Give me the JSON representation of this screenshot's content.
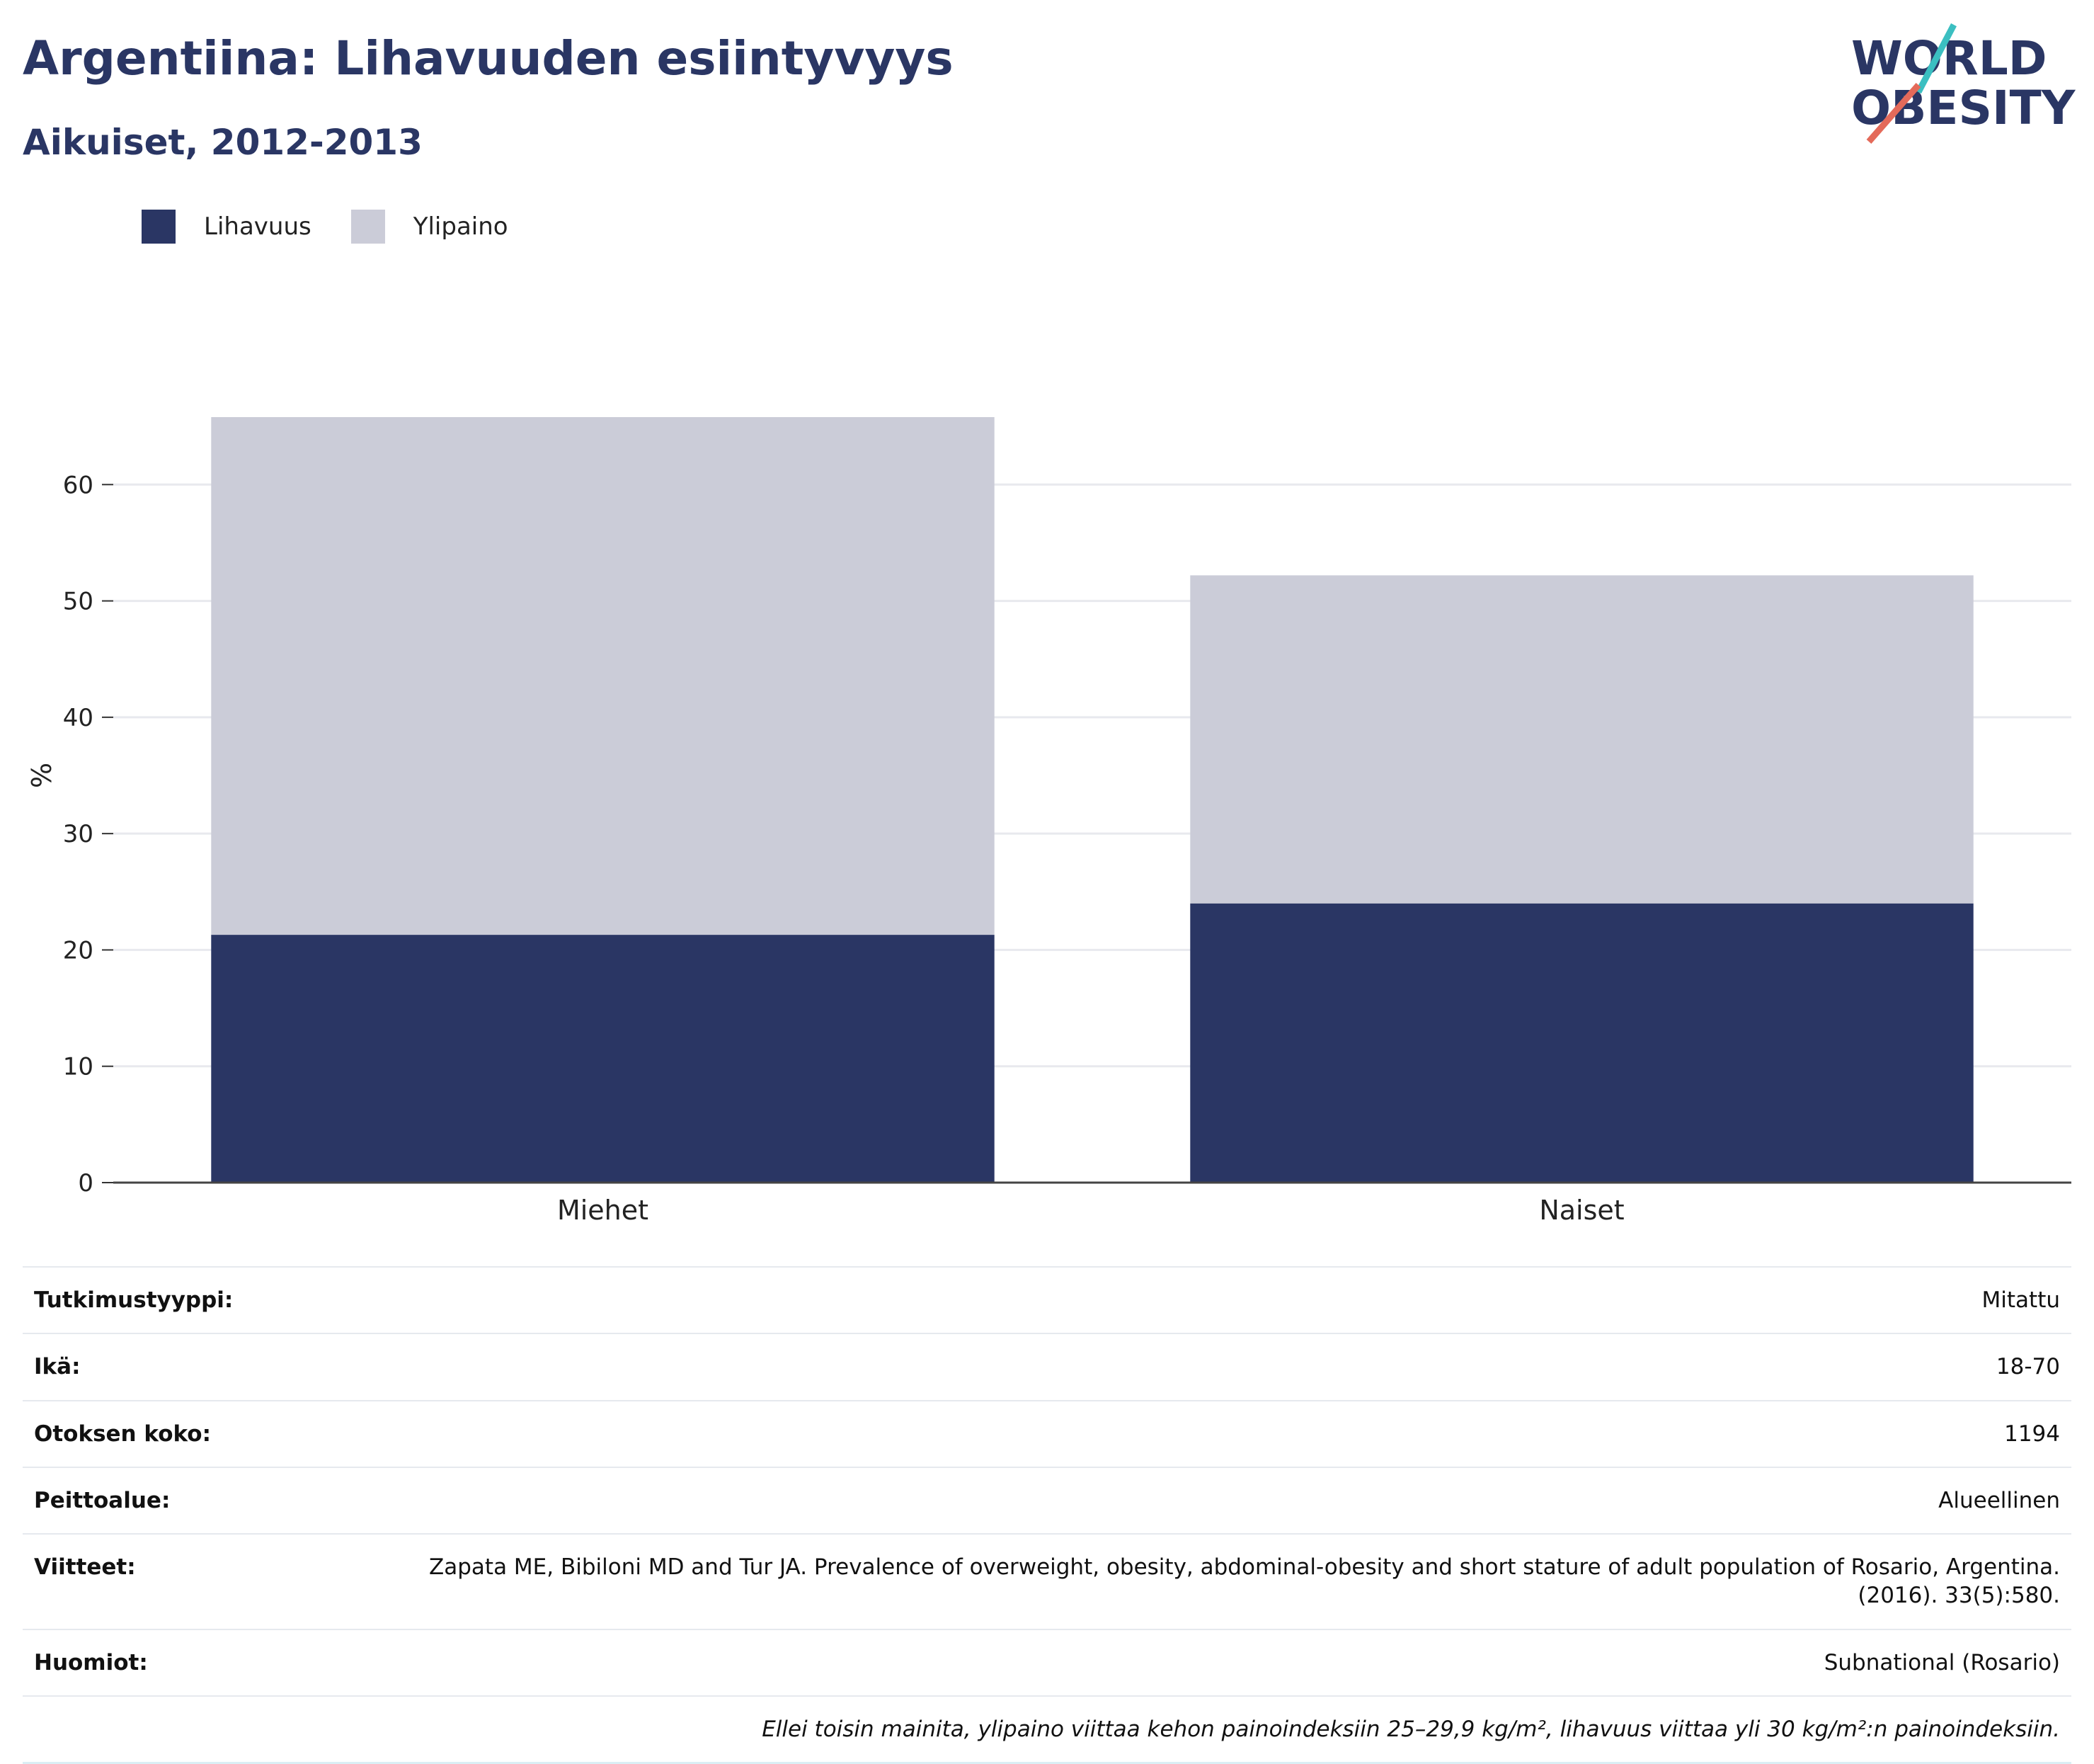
{
  "header": {
    "title": "Argentiina: Lihavuuden esiintyvyys",
    "subtitle": "Aikuiset, 2012-2013"
  },
  "logo": {
    "line1": "WORLD",
    "line2": "OBESITY"
  },
  "legend": [
    {
      "label": "Lihavuus",
      "color": "#2a3664"
    },
    {
      "label": "Ylipaino",
      "color": "#cbccd8"
    }
  ],
  "chart_data": {
    "type": "bar",
    "stacked": true,
    "categories": [
      "Miehet",
      "Naiset"
    ],
    "series": [
      {
        "name": "Lihavuus",
        "values": [
          21.3,
          24.0
        ],
        "color": "#2a3664"
      },
      {
        "name": "Ylipaino",
        "values": [
          44.5,
          28.2
        ],
        "color": "#cbccd8"
      }
    ],
    "ylabel": "%",
    "yticks": [
      0,
      10,
      20,
      30,
      40,
      50,
      60
    ],
    "ylim": [
      0,
      70
    ],
    "grid": true
  },
  "info": [
    {
      "label": "Tutkimustyyppi:",
      "value": "Mitattu"
    },
    {
      "label": "Ikä:",
      "value": "18-70"
    },
    {
      "label": "Otoksen koko:",
      "value": "1194"
    },
    {
      "label": "Peittoalue:",
      "value": "Alueellinen"
    },
    {
      "label": "Viitteet:",
      "value": "Zapata ME, Bibiloni MD and Tur JA. Prevalence of overweight, obesity, abdominal-obesity and short stature of adult population of Rosario, Argentina. (2016). 33(5):580."
    },
    {
      "label": "Huomiot:",
      "value": "Subnational (Rosario)"
    }
  ],
  "note": "Ellei toisin mainita, ylipaino viittaa kehon painoindeksiin 25–29,9 kg/m², lihavuus viittaa yli 30 kg/m²:n painoindeksiin."
}
